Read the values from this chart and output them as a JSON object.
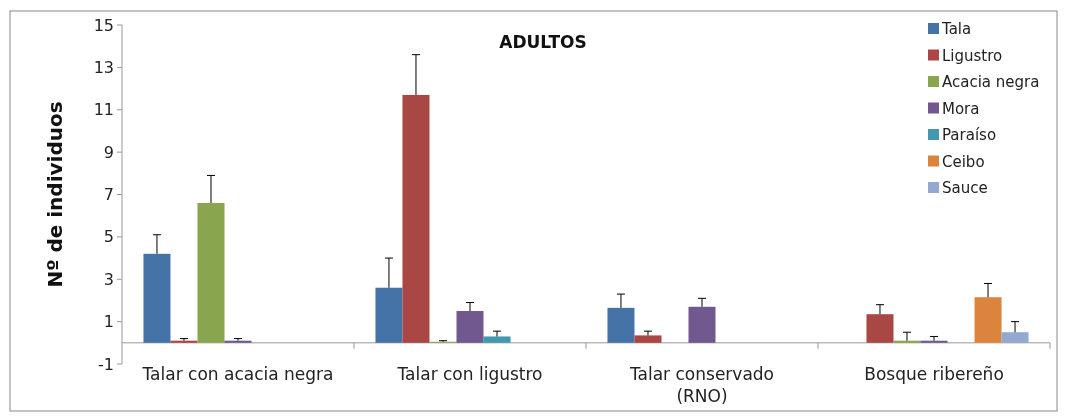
{
  "chart_data": {
    "type": "bar",
    "title": "ADULTOS",
    "ylabel": "Nº de individuos",
    "categories": [
      "Talar con acacia negra",
      "Talar con ligustro",
      "Talar conservado (RNO)",
      "Bosque ribereño"
    ],
    "series": [
      {
        "name": "Tala",
        "color": "#4573a7",
        "values": [
          4.2,
          2.6,
          1.65,
          0
        ],
        "errors": [
          [
            4.2,
            5.1
          ],
          [
            2.6,
            4.0
          ],
          [
            1.65,
            2.3
          ],
          null
        ]
      },
      {
        "name": "Ligustro",
        "color": "#aa4643",
        "values": [
          0.1,
          11.7,
          0.35,
          1.35
        ],
        "errors": [
          [
            0.1,
            0.2
          ],
          [
            11.7,
            13.6
          ],
          [
            0.35,
            0.55
          ],
          [
            1.35,
            1.8
          ]
        ]
      },
      {
        "name": "Acacia negra",
        "color": "#89a54e",
        "values": [
          6.6,
          0.05,
          0,
          0.1
        ],
        "errors": [
          [
            6.6,
            7.9
          ],
          [
            0.05,
            0.1
          ],
          null,
          [
            0.1,
            0.5
          ]
        ]
      },
      {
        "name": "Mora",
        "color": "#71588f",
        "values": [
          0.1,
          1.5,
          1.7,
          0.1
        ],
        "errors": [
          [
            0.1,
            0.2
          ],
          [
            1.5,
            1.9
          ],
          [
            1.7,
            2.1
          ],
          [
            0.1,
            0.3
          ]
        ]
      },
      {
        "name": "Paraíso",
        "color": "#4198af",
        "values": [
          0,
          0.3,
          0,
          0
        ],
        "errors": [
          null,
          [
            0.3,
            0.55
          ],
          null,
          null
        ]
      },
      {
        "name": "Ceibo",
        "color": "#db843d",
        "values": [
          0,
          0,
          0,
          2.15
        ],
        "errors": [
          null,
          null,
          null,
          [
            2.15,
            2.8
          ]
        ]
      },
      {
        "name": "Sauce",
        "color": "#93a9cf",
        "values": [
          0,
          0,
          0,
          0.5
        ],
        "errors": [
          null,
          null,
          null,
          [
            0.5,
            1.0
          ]
        ]
      }
    ],
    "ylim": [
      -1,
      15
    ],
    "yticks": [
      -1,
      1,
      3,
      5,
      7,
      9,
      11,
      13,
      15
    ],
    "grid": false,
    "legend": "top right"
  }
}
